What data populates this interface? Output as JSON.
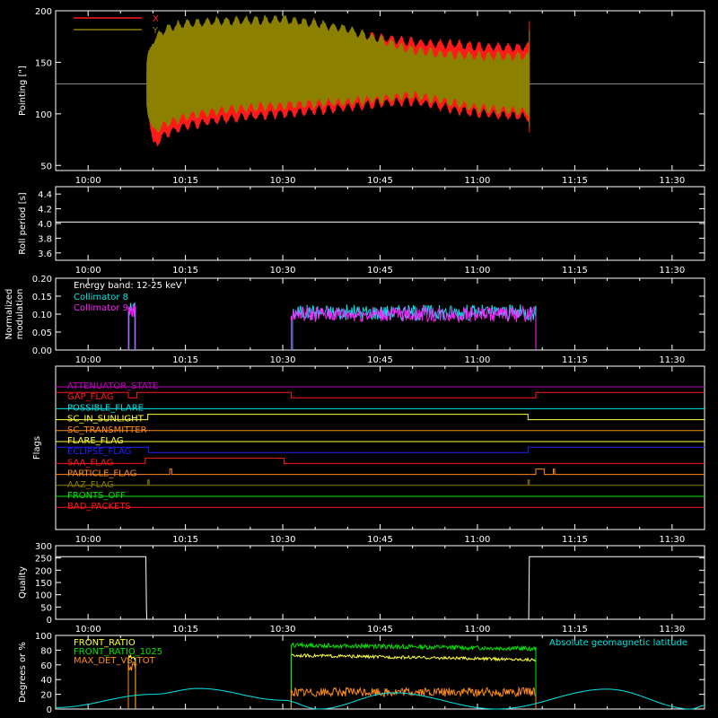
{
  "time_axis": {
    "start_minute": 595,
    "end_minute": 695,
    "ticks": [
      {
        "t": 600,
        "label": "10:00"
      },
      {
        "t": 615,
        "label": "10:15"
      },
      {
        "t": 630,
        "label": "10:30"
      },
      {
        "t": 645,
        "label": "10:45"
      },
      {
        "t": 660,
        "label": "11:00"
      },
      {
        "t": 675,
        "label": "11:15"
      },
      {
        "t": 690,
        "label": "11:30"
      }
    ]
  },
  "colors": {
    "background": "#000000",
    "axes": "#ffffff",
    "red": "#ff1a1a",
    "olive": "#8c8000",
    "cyan": "#00e5e5",
    "magenta": "#ff20ff",
    "green": "#00e800",
    "yellow": "#ffff40",
    "orange": "#ff8c1a",
    "blue": "#2020ff",
    "purple": "#c000c0"
  },
  "chart_data": [
    {
      "id": "pointing",
      "type": "area",
      "ylabel": "Pointing [\"]",
      "ylim": [
        45,
        200
      ],
      "yticks": [
        50,
        100,
        150,
        200
      ],
      "legend": [
        "X",
        "Y"
      ],
      "baseline": 129,
      "series": [
        {
          "name": "X",
          "color": "red",
          "t": [
            609,
            610,
            612,
            615,
            620,
            625,
            630,
            635,
            640,
            645,
            650,
            655,
            660,
            665,
            668
          ],
          "upper": [
            140,
            150,
            158,
            163,
            168,
            170,
            174,
            177,
            178,
            174,
            170,
            168,
            166,
            165,
            165
          ],
          "lower": [
            118,
            68,
            80,
            88,
            94,
            97,
            100,
            103,
            106,
            110,
            112,
            106,
            100,
            98,
            97
          ]
        },
        {
          "name": "Y",
          "color": "olive",
          "t": [
            609,
            610,
            612,
            615,
            620,
            625,
            630,
            635,
            640,
            645,
            650,
            655,
            660,
            665,
            668
          ],
          "upper": [
            150,
            172,
            183,
            188,
            190,
            191,
            192,
            188,
            182,
            172,
            162,
            158,
            156,
            156,
            156
          ],
          "lower": [
            108,
            82,
            90,
            97,
            103,
            106,
            108,
            110,
            112,
            114,
            118,
            112,
            106,
            103,
            102
          ]
        }
      ]
    },
    {
      "id": "roll",
      "type": "line",
      "ylabel": "Roll period [s]",
      "ylim": [
        3.5,
        4.5
      ],
      "yticks": [
        3.6,
        3.8,
        4.0,
        4.2,
        4.4
      ],
      "ytick_labels": [
        "3.6",
        "3.8",
        "4.0",
        "4.2",
        "4.4"
      ],
      "series": [
        {
          "name": "",
          "color": "axes",
          "t": [
            595,
            695
          ],
          "values": [
            4.02,
            4.02
          ]
        }
      ]
    },
    {
      "id": "modulation",
      "type": "line",
      "ylabel": "Normalized modulation",
      "ylim": [
        0.0,
        0.2
      ],
      "yticks": [
        0.0,
        0.05,
        0.1,
        0.15,
        0.2
      ],
      "ytick_labels": [
        "0.00",
        "0.05",
        "0.10",
        "0.15",
        "0.20"
      ],
      "legend_title": "Energy band: 12-25 keV",
      "series": [
        {
          "name": "Collimator 8",
          "color": "cyan",
          "segments": [
            {
              "t": [
                606.3,
                607.2
              ],
              "mean": 0.115,
              "noise": 0.02
            },
            {
              "t": [
                631.5,
                669.0
              ],
              "mean": 0.105,
              "noise": 0.022
            }
          ]
        },
        {
          "name": "Collimator 9",
          "color": "magenta",
          "segments": [
            {
              "t": [
                606.2,
                607.3
              ],
              "mean": 0.11,
              "noise": 0.02
            },
            {
              "t": [
                631.3,
                669.0
              ],
              "mean": 0.1,
              "noise": 0.022
            }
          ]
        }
      ]
    },
    {
      "id": "flags",
      "type": "line",
      "ylabel": "Flags",
      "series": [
        {
          "name": "ATTENUATOR_STATE",
          "color": "purple",
          "steps": [
            [
              595,
              0
            ]
          ]
        },
        {
          "name": "GAP_FLAG",
          "color": "red",
          "steps": [
            [
              595,
              1
            ],
            [
              606.2,
              0
            ],
            [
              607.5,
              1
            ],
            [
              631.3,
              0
            ],
            [
              669,
              1
            ]
          ]
        },
        {
          "name": "POSSIBLE_FLARE",
          "color": "cyan",
          "steps": [
            [
              595,
              0
            ]
          ]
        },
        {
          "name": "SC_IN_SUNLIGHT",
          "color": "yellow",
          "steps": [
            [
              595,
              0
            ],
            [
              609.2,
              1
            ],
            [
              667.8,
              0
            ]
          ]
        },
        {
          "name": "SC_TRANSMITTER",
          "color": "orange",
          "steps": [
            [
              595,
              0
            ]
          ]
        },
        {
          "name": "FLARE_FLAG",
          "color": "yellow",
          "steps": [
            [
              595,
              0
            ]
          ]
        },
        {
          "name": "ECLIPSE_FLAG",
          "color": "blue",
          "steps": [
            [
              595,
              1
            ],
            [
              609.3,
              0
            ],
            [
              667.8,
              1
            ]
          ]
        },
        {
          "name": "SAA_FLAG",
          "color": "red",
          "steps": [
            [
              595,
              0
            ],
            [
              608.8,
              1
            ],
            [
              630.2,
              0
            ]
          ]
        },
        {
          "name": "PARTICLE_FLAG",
          "color": "orange",
          "steps": [
            [
              595,
              0
            ],
            [
              612.6,
              1
            ],
            [
              612.9,
              0
            ],
            [
              669,
              1
            ],
            [
              670.3,
              0
            ],
            [
              671.7,
              1
            ],
            [
              671.9,
              0
            ]
          ]
        },
        {
          "name": "AAZ_FLAG",
          "color": "olive",
          "steps": [
            [
              595,
              0
            ],
            [
              609.2,
              1
            ],
            [
              609.4,
              0
            ],
            [
              667.8,
              1
            ],
            [
              668.0,
              0
            ]
          ]
        },
        {
          "name": "FRONTS_OFF",
          "color": "green",
          "steps": [
            [
              595,
              0
            ]
          ]
        },
        {
          "name": "BAD_PACKETS",
          "color": "red",
          "steps": [
            [
              595,
              0
            ]
          ]
        }
      ]
    },
    {
      "id": "quality",
      "type": "line",
      "ylabel": "Quality",
      "ylim": [
        0,
        300
      ],
      "yticks": [
        0,
        50,
        100,
        150,
        200,
        250,
        300
      ],
      "series": [
        {
          "name": "",
          "color": "axes",
          "t": [
            595,
            608.9,
            609.0,
            609.05,
            667.9,
            668.0,
            695
          ],
          "values": [
            255,
            255,
            40,
            0,
            0,
            255,
            255
          ]
        }
      ]
    },
    {
      "id": "ratios",
      "type": "line",
      "ylabel": "Degrees or %",
      "ylim": [
        0,
        100
      ],
      "yticks": [
        0,
        20,
        40,
        60,
        80,
        100
      ],
      "series": [
        {
          "name": "FRONT_RATIO",
          "color": "yellow",
          "segments": [
            {
              "t": [
                606.2,
                607.3
              ],
              "mean": 70,
              "noise": 3
            },
            {
              "t": [
                631.3,
                669.0
              ],
              "mean": 73,
              "drift": -6,
              "noise": 2
            }
          ]
        },
        {
          "name": "FRONT_RATIO_1025",
          "color": "green",
          "segments": [
            {
              "t": [
                631.3,
                669.0
              ],
              "mean": 87,
              "drift": -5,
              "noise": 3
            }
          ]
        },
        {
          "name": "MAX_DET_VS_TOT",
          "color": "orange",
          "segments": [
            {
              "t": [
                606.2,
                607.3
              ],
              "mean": 58,
              "noise": 8
            },
            {
              "t": [
                631.3,
                669.0
              ],
              "mean": 23,
              "noise": 6
            }
          ]
        },
        {
          "name": "Absolute geomagnetic latitude",
          "color": "cyan",
          "type": "latitude",
          "t": [
            595,
            610,
            617,
            630,
            635.5,
            647,
            663,
            680,
            693,
            695
          ],
          "values": [
            2,
            20,
            28,
            12,
            0,
            22,
            0,
            27,
            0,
            5
          ]
        }
      ]
    }
  ]
}
